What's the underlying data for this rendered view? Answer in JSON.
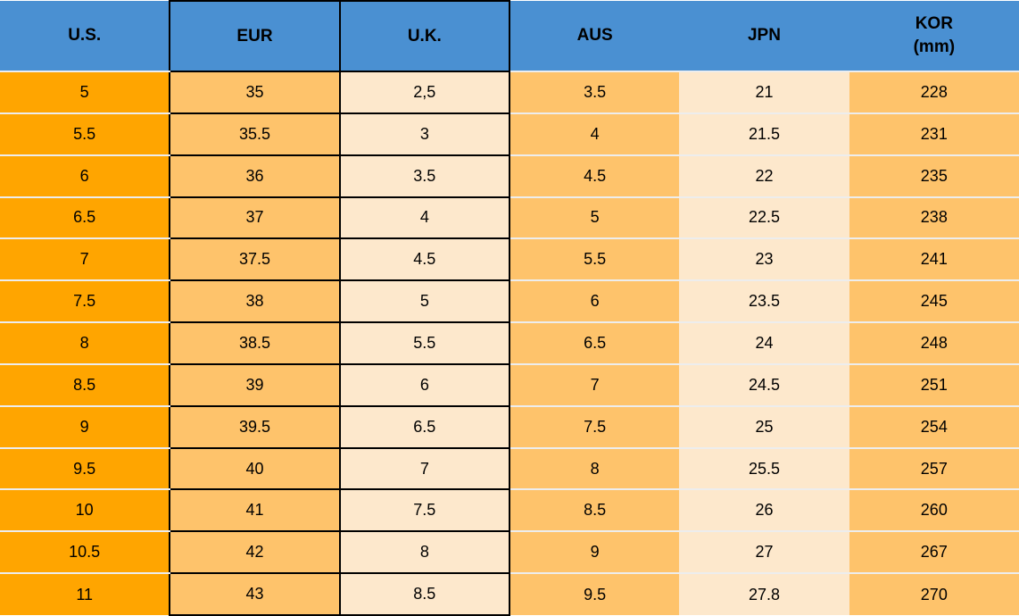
{
  "colors": {
    "header_blue": "#4A90D2",
    "orange": "#FFA500",
    "light_orange": "#FEC36B",
    "cream": "#FDE8CC",
    "cell_border_black": "#000000",
    "row_separator": "#EDEDED",
    "text": "#000000"
  },
  "chart_data": {
    "type": "table",
    "title": "",
    "columns": [
      {
        "id": "us",
        "label": "U.S."
      },
      {
        "id": "eur",
        "label": "EUR"
      },
      {
        "id": "uk",
        "label": "U.K."
      },
      {
        "id": "aus",
        "label": "AUS"
      },
      {
        "id": "jpn",
        "label": "JPN"
      },
      {
        "id": "kor",
        "label": "KOR",
        "label_line2": "(mm)"
      }
    ],
    "rows": [
      [
        "5",
        "35",
        "2,5",
        "3.5",
        "21",
        "228"
      ],
      [
        "5.5",
        "35.5",
        "3",
        "4",
        "21.5",
        "231"
      ],
      [
        "6",
        "36",
        "3.5",
        "4.5",
        "22",
        "235"
      ],
      [
        "6.5",
        "37",
        "4",
        "5",
        "22.5",
        "238"
      ],
      [
        "7",
        "37.5",
        "4.5",
        "5.5",
        "23",
        "241"
      ],
      [
        "7.5",
        "38",
        "5",
        "6",
        "23.5",
        "245"
      ],
      [
        "8",
        "38.5",
        "5.5",
        "6.5",
        "24",
        "248"
      ],
      [
        "8.5",
        "39",
        "6",
        "7",
        "24.5",
        "251"
      ],
      [
        "9",
        "39.5",
        "6.5",
        "7.5",
        "25",
        "254"
      ],
      [
        "9.5",
        "40",
        "7",
        "8",
        "25.5",
        "257"
      ],
      [
        "10",
        "41",
        "7.5",
        "8.5",
        "26",
        "260"
      ],
      [
        "10.5",
        "42",
        "8",
        "9",
        "27",
        "267"
      ],
      [
        "11",
        "43",
        "8.5",
        "9.5",
        "27.8",
        "270"
      ]
    ]
  }
}
